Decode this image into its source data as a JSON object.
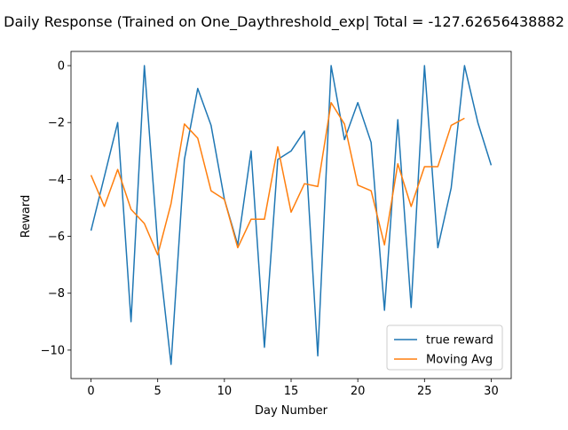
{
  "chart_data": {
    "type": "line",
    "title": "Daily Response (Trained on One_Daythreshold_exp| Total = -127.62656438882",
    "xlabel": "Day Number",
    "ylabel": "Reward",
    "xlim": [
      -1.5,
      31.5
    ],
    "ylim": [
      -11,
      0.5
    ],
    "xticks": [
      0,
      5,
      10,
      15,
      20,
      25,
      30
    ],
    "yticks": [
      0,
      -2,
      -4,
      -6,
      -8,
      -10
    ],
    "grid": false,
    "legend_position": "lower right",
    "series": [
      {
        "name": "true reward",
        "color": "#1f77b4",
        "x": [
          0,
          1,
          2,
          3,
          4,
          5,
          6,
          7,
          8,
          9,
          10,
          11,
          12,
          13,
          14,
          15,
          16,
          17,
          18,
          19,
          20,
          21,
          22,
          23,
          24,
          25,
          26,
          27,
          28,
          29,
          30
        ],
        "values": [
          -5.8,
          -3.9,
          -2.0,
          -9.0,
          0.0,
          -6.3,
          -10.5,
          -3.3,
          -0.8,
          -2.1,
          -4.7,
          -6.3,
          -3.0,
          -9.9,
          -3.3,
          -3.0,
          -2.3,
          -10.2,
          0.0,
          -2.6,
          -1.3,
          -2.7,
          -8.6,
          -1.9,
          -8.5,
          0.0,
          -6.4,
          -4.3,
          0.0,
          -2.0,
          -3.5
        ]
      },
      {
        "name": "Moving Avg",
        "color": "#ff7f0e",
        "x": [
          0,
          1,
          2,
          3,
          4,
          5,
          6,
          7,
          8,
          9,
          10,
          11,
          12,
          13,
          14,
          15,
          16,
          17,
          18,
          19,
          20,
          21,
          22,
          23,
          24,
          25,
          26,
          27,
          28
        ],
        "values": [
          -3.85,
          -4.95,
          -3.65,
          -5.05,
          -5.55,
          -6.65,
          -4.85,
          -2.05,
          -2.55,
          -4.4,
          -4.7,
          -6.4,
          -5.4,
          -5.4,
          -2.85,
          -5.15,
          -4.15,
          -4.25,
          -1.3,
          -2.05,
          -4.2,
          -4.4,
          -6.3,
          -3.45,
          -4.95,
          -3.55,
          -3.55,
          -2.1,
          -1.85
        ]
      }
    ]
  }
}
